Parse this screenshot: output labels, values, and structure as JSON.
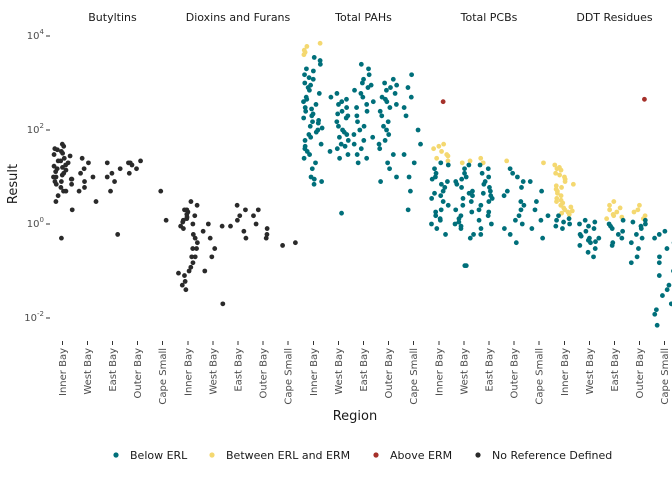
{
  "chart_data": {
    "type": "scatter",
    "xlabel": "Region",
    "ylabel": "Result",
    "y_scale": "log10",
    "ylim": [
      0.006,
      20000
    ],
    "y_ticks": [
      {
        "value": 0.01,
        "base": "10",
        "exp": "-2"
      },
      {
        "value": 1,
        "base": "10",
        "exp": "0"
      },
      {
        "value": 100,
        "base": "10",
        "exp": "2"
      },
      {
        "value": 10000,
        "base": "10",
        "exp": "4"
      }
    ],
    "regions": [
      "Inner Bay",
      "West Bay",
      "East Bay",
      "Outer Bay",
      "Cape Small"
    ],
    "categories": {
      "below": {
        "label": "Below ERL",
        "color": "#006f7a"
      },
      "between": {
        "label": "Between ERL and ERM",
        "color": "#f4d870"
      },
      "above": {
        "label": "Above ERM",
        "color": "#a5302a"
      },
      "none": {
        "label": "No Reference Defined",
        "color": "#2a2a2a"
      }
    },
    "legend_order": [
      "below",
      "between",
      "above",
      "none"
    ],
    "legend_position": "bottom",
    "panels": [
      {
        "name": "Butyltins",
        "points": [
          {
            "region": 0,
            "cat": "none",
            "values": [
              50,
              45,
              40,
              38,
              35,
              32,
              30,
              28,
              25,
              22,
              22,
              20,
              18,
              17,
              16,
              15,
              14,
              13,
              12,
              11,
              10,
              10,
              9,
              9,
              8,
              8,
              7,
              7,
              6,
              5,
              5,
              4,
              3,
              2,
              0.5
            ]
          },
          {
            "region": 1,
            "cat": "none",
            "values": [
              25,
              20,
              15,
              12,
              10,
              8,
              6,
              5,
              3
            ]
          },
          {
            "region": 2,
            "cat": "none",
            "values": [
              20,
              15,
              12,
              10,
              8,
              5,
              0.6
            ]
          },
          {
            "region": 3,
            "cat": "none",
            "values": [
              22,
              20,
              18,
              15,
              12,
              20
            ]
          },
          {
            "region": 4,
            "cat": "none",
            "values": [
              5,
              1.2
            ]
          }
        ]
      },
      {
        "name": "Dioxins and Furans",
        "points": [
          {
            "region": 0,
            "cat": "none",
            "values": [
              3,
              2.5,
              2,
              2,
              1.8,
              1.6,
              1.5,
              1.4,
              1.3,
              1.2,
              1.1,
              1,
              0.9,
              0.8,
              0.6,
              0.5,
              0.4,
              0.3,
              0.2,
              0.15,
              0.12,
              0.1,
              0.09,
              0.08,
              0.06,
              0.05,
              0.04,
              0.2,
              0.3
            ]
          },
          {
            "region": 1,
            "cat": "none",
            "values": [
              1,
              0.9,
              0.7,
              0.5,
              0.3,
              0.2,
              0.1,
              0.02
            ]
          },
          {
            "region": 2,
            "cat": "none",
            "values": [
              2.5,
              2,
              1.5,
              1.2,
              0.9,
              0.7,
              0.5
            ]
          },
          {
            "region": 3,
            "cat": "none",
            "values": [
              2,
              1.5,
              1,
              0.8,
              0.6,
              0.5
            ]
          },
          {
            "region": 4,
            "cat": "none",
            "values": [
              0.4,
              0.35
            ]
          }
        ]
      },
      {
        "name": "Total PAHs",
        "points": [
          {
            "region": 0,
            "cat": "between",
            "values": [
              7000,
              6000,
              5000,
              4500,
              4000
            ]
          },
          {
            "region": 0,
            "cat": "below",
            "values": [
              3500,
              3000,
              2500,
              2000,
              1800,
              1500,
              1300,
              1200,
              1000,
              900,
              800,
              700,
              600,
              500,
              450,
              400,
              350,
              300,
              280,
              250,
              220,
              200,
              180,
              160,
              150,
              140,
              120,
              110,
              100,
              90,
              80,
              70,
              60,
              50,
              45,
              40,
              35,
              30,
              25,
              20,
              15,
              10,
              9,
              8,
              7
            ]
          },
          {
            "region": 1,
            "cat": "below",
            "values": [
              600,
              500,
              450,
              400,
              350,
              300,
              250,
              220,
              200,
              180,
              150,
              120,
              100,
              90,
              80,
              70,
              60,
              50,
              45,
              40,
              35,
              30,
              25,
              1.7
            ]
          },
          {
            "region": 2,
            "cat": "below",
            "values": [
              2500,
              2000,
              1500,
              1200,
              1000,
              900,
              800,
              700,
              600,
              500,
              400,
              350,
              300,
              250,
              200,
              150,
              120,
              100,
              80,
              70,
              60,
              50,
              40,
              30,
              25,
              20
            ]
          },
          {
            "region": 3,
            "cat": "below",
            "values": [
              1200,
              1000,
              900,
              800,
              700,
              600,
              500,
              450,
              400,
              350,
              300,
              250,
              200,
              150,
              120,
              100,
              80,
              60,
              50,
              40,
              30,
              20,
              15,
              10,
              8
            ]
          },
          {
            "region": 4,
            "cat": "below",
            "values": [
              1500,
              800,
              500,
              300,
              200,
              100,
              50,
              30,
              20,
              10,
              5,
              2
            ]
          }
        ]
      },
      {
        "name": "Total PCBs",
        "points": [
          {
            "region": 0,
            "cat": "between",
            "values": [
              50,
              45,
              40,
              35,
              30,
              28,
              25,
              22
            ]
          },
          {
            "region": 0,
            "cat": "above",
            "values": [
              400
            ]
          },
          {
            "region": 0,
            "cat": "below",
            "values": [
              20,
              18,
              15,
              12,
              10,
              9,
              8,
              7,
              6,
              5,
              4.5,
              4,
              3.5,
              3,
              2.5,
              2,
              1.8,
              1.5,
              1.3,
              1.2,
              1,
              0.8,
              0.6
            ]
          },
          {
            "region": 1,
            "cat": "between",
            "values": [
              22,
              20
            ]
          },
          {
            "region": 1,
            "cat": "below",
            "values": [
              18,
              15,
              12,
              10,
              9,
              8,
              7,
              6,
              5,
              4.5,
              4,
              3.5,
              3,
              2.5,
              2,
              1.8,
              1.5,
              1.3,
              1.1,
              1,
              0.9,
              0.8,
              0.6,
              0.5,
              0.13,
              0.13
            ]
          },
          {
            "region": 2,
            "cat": "between",
            "values": [
              25,
              20
            ]
          },
          {
            "region": 2,
            "cat": "below",
            "values": [
              18,
              15,
              12,
              10,
              8,
              7,
              6,
              5,
              4.5,
              4,
              3.5,
              3,
              2.5,
              2,
              1.8,
              1.5,
              1.2,
              1,
              0.8,
              0.6
            ]
          },
          {
            "region": 3,
            "cat": "between",
            "values": [
              22
            ]
          },
          {
            "region": 3,
            "cat": "below",
            "values": [
              15,
              12,
              10,
              8,
              6,
              5,
              4,
              3,
              2.5,
              2,
              1.5,
              1.2,
              1,
              0.8,
              0.6,
              0.4
            ]
          },
          {
            "region": 4,
            "cat": "between",
            "values": [
              20
            ]
          },
          {
            "region": 4,
            "cat": "below",
            "values": [
              8,
              5,
              3,
              2,
              1.5,
              1.2,
              0.8,
              0.5
            ]
          }
        ]
      },
      {
        "name": "DDT Residues",
        "points": [
          {
            "region": 0,
            "cat": "between",
            "values": [
              18,
              16,
              15,
              14,
              12,
              11,
              10,
              9,
              8,
              7,
              6.5,
              6,
              5.5,
              5,
              4.5,
              4,
              3.5,
              3.2,
              3,
              2.8,
              2.5,
              2.3,
              2.2,
              2,
              1.9,
              1.8,
              1.7,
              1.6
            ]
          },
          {
            "region": 0,
            "cat": "below",
            "values": [
              1.5,
              1.3,
              1.2,
              1.1,
              1,
              0.9,
              0.8
            ]
          },
          {
            "region": 1,
            "cat": "below",
            "values": [
              1.2,
              1,
              0.9,
              0.8,
              0.7,
              0.6,
              0.5,
              0.45,
              0.4,
              0.35,
              0.3,
              0.25,
              0.2,
              1.1,
              0.55,
              0.5,
              0.42
            ]
          },
          {
            "region": 2,
            "cat": "between",
            "values": [
              3,
              2.5,
              2.2,
              2,
              1.8,
              1.6,
              1.5,
              1.4,
              1.3
            ]
          },
          {
            "region": 2,
            "cat": "below",
            "values": [
              1.2,
              1,
              0.9,
              0.8,
              0.7,
              0.6,
              0.5,
              0.4,
              0.35
            ]
          },
          {
            "region": 3,
            "cat": "between",
            "values": [
              2.5,
              2,
              1.8,
              1.5,
              1.3
            ]
          },
          {
            "region": 3,
            "cat": "below",
            "values": [
              1.2,
              1.1,
              1,
              0.9,
              0.8,
              0.6,
              0.5,
              0.4,
              0.3,
              0.2,
              0.15
            ]
          },
          {
            "region": 3,
            "cat": "above",
            "values": [
              450
            ]
          },
          {
            "region": 4,
            "cat": "below",
            "values": [
              0.7,
              0.6,
              0.5,
              0.4,
              0.3,
              0.2,
              0.15,
              0.1,
              0.08,
              0.05,
              0.04,
              0.03,
              0.02,
              0.015,
              0.007,
              0.012
            ]
          }
        ]
      }
    ]
  }
}
